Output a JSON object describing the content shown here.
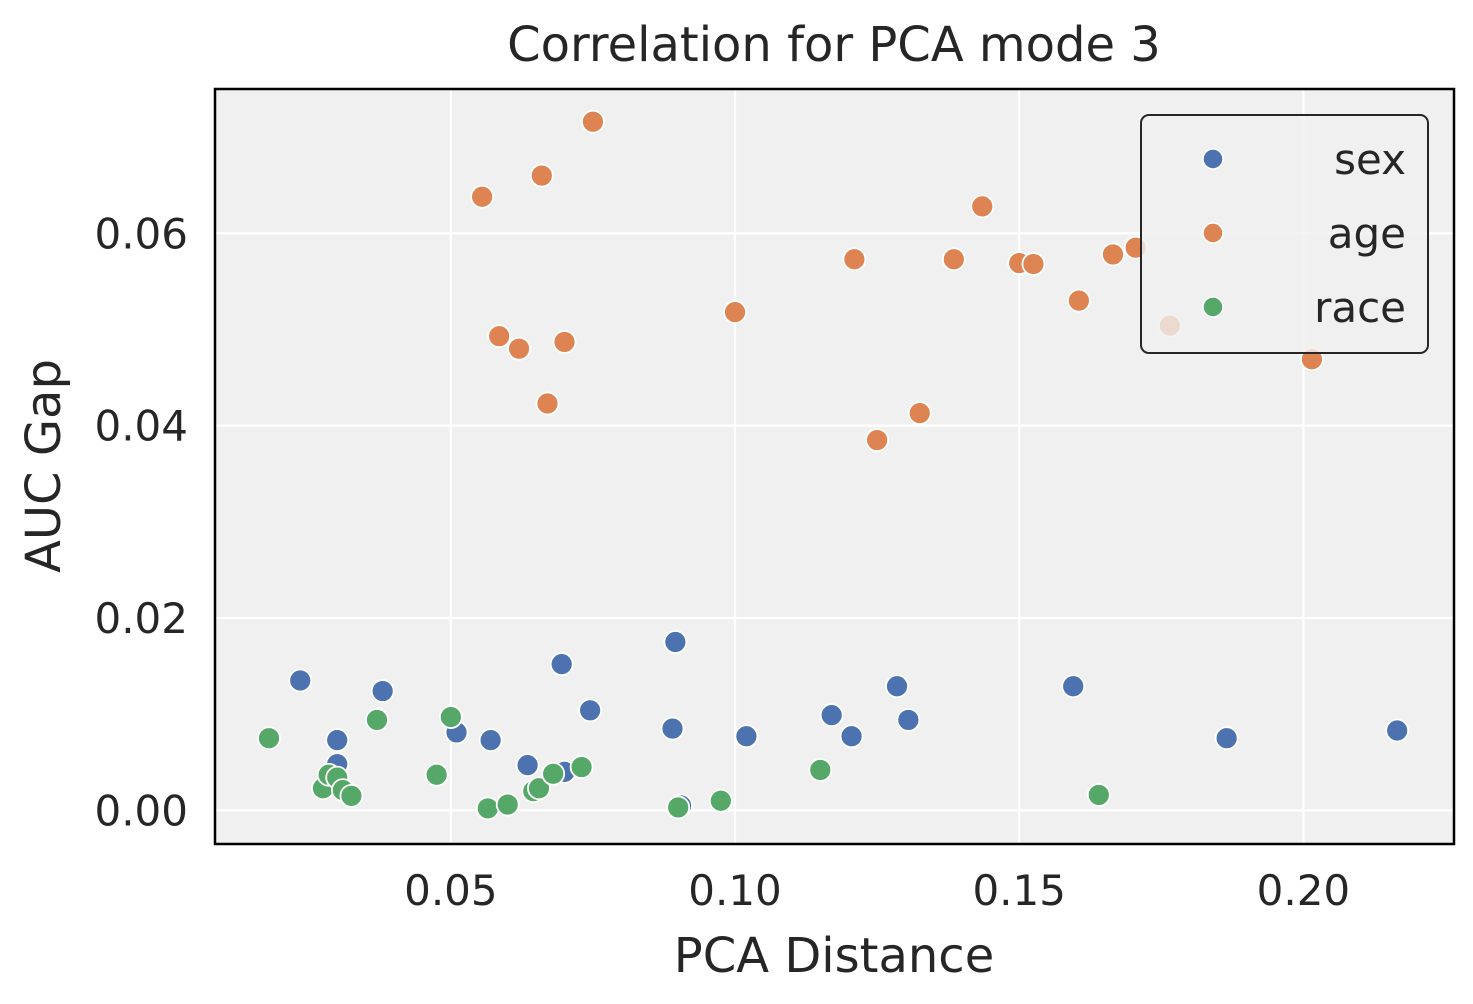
{
  "chart_data": {
    "type": "scatter",
    "title": "Correlation for PCA mode 3",
    "xlabel": "PCA Distance",
    "ylabel": "AUC Gap",
    "xlim": [
      0.0085,
      0.2265
    ],
    "ylim": [
      -0.0035,
      0.075
    ],
    "xticks": [
      0.05,
      0.1,
      0.15,
      0.2
    ],
    "xtick_labels": [
      "0.05",
      "0.10",
      "0.15",
      "0.20"
    ],
    "yticks": [
      0.0,
      0.02,
      0.04,
      0.06
    ],
    "ytick_labels": [
      "0.00",
      "0.02",
      "0.04",
      "0.06"
    ],
    "grid": true,
    "legend_position": "top-right",
    "background_color": "#f0f0f0",
    "series": [
      {
        "name": "sex",
        "color": "#4c72b0",
        "points": [
          [
            0.0235,
            0.0135
          ],
          [
            0.03,
            0.0073
          ],
          [
            0.03,
            0.0048
          ],
          [
            0.038,
            0.0124
          ],
          [
            0.051,
            0.0081
          ],
          [
            0.057,
            0.0073
          ],
          [
            0.0635,
            0.0047
          ],
          [
            0.0695,
            0.0152
          ],
          [
            0.07,
            0.004
          ],
          [
            0.0745,
            0.0104
          ],
          [
            0.089,
            0.0085
          ],
          [
            0.0895,
            0.0175
          ],
          [
            0.0905,
            0.0005
          ],
          [
            0.102,
            0.0077
          ],
          [
            0.117,
            0.0099
          ],
          [
            0.1205,
            0.0077
          ],
          [
            0.1285,
            0.0129
          ],
          [
            0.1305,
            0.0094
          ],
          [
            0.1595,
            0.0129
          ],
          [
            0.1865,
            0.0075
          ],
          [
            0.2165,
            0.0083
          ]
        ]
      },
      {
        "name": "age",
        "color": "#dd8452",
        "points": [
          [
            0.0555,
            0.0638
          ],
          [
            0.0585,
            0.0493
          ],
          [
            0.062,
            0.048
          ],
          [
            0.066,
            0.066
          ],
          [
            0.067,
            0.0423
          ],
          [
            0.07,
            0.0487
          ],
          [
            0.075,
            0.0716
          ],
          [
            0.1,
            0.0518
          ],
          [
            0.121,
            0.0573
          ],
          [
            0.125,
            0.0385
          ],
          [
            0.1325,
            0.0413
          ],
          [
            0.1385,
            0.0573
          ],
          [
            0.1435,
            0.0628
          ],
          [
            0.15,
            0.0569
          ],
          [
            0.1525,
            0.0568
          ],
          [
            0.1605,
            0.053
          ],
          [
            0.1665,
            0.0578
          ],
          [
            0.1705,
            0.0585
          ],
          [
            0.1765,
            0.0504
          ],
          [
            0.2015,
            0.0469
          ]
        ]
      },
      {
        "name": "race",
        "color": "#55a868",
        "points": [
          [
            0.018,
            0.0075
          ],
          [
            0.0275,
            0.0023
          ],
          [
            0.0285,
            0.0037
          ],
          [
            0.03,
            0.0034
          ],
          [
            0.031,
            0.0021
          ],
          [
            0.0325,
            0.0015
          ],
          [
            0.037,
            0.0094
          ],
          [
            0.0475,
            0.0037
          ],
          [
            0.05,
            0.0097
          ],
          [
            0.0565,
            0.0002
          ],
          [
            0.06,
            0.0006
          ],
          [
            0.0645,
            0.002
          ],
          [
            0.0655,
            0.0023
          ],
          [
            0.068,
            0.0038
          ],
          [
            0.073,
            0.0045
          ],
          [
            0.09,
            0.0003
          ],
          [
            0.0975,
            0.001
          ],
          [
            0.115,
            0.0042
          ],
          [
            0.164,
            0.0016
          ]
        ]
      }
    ]
  }
}
